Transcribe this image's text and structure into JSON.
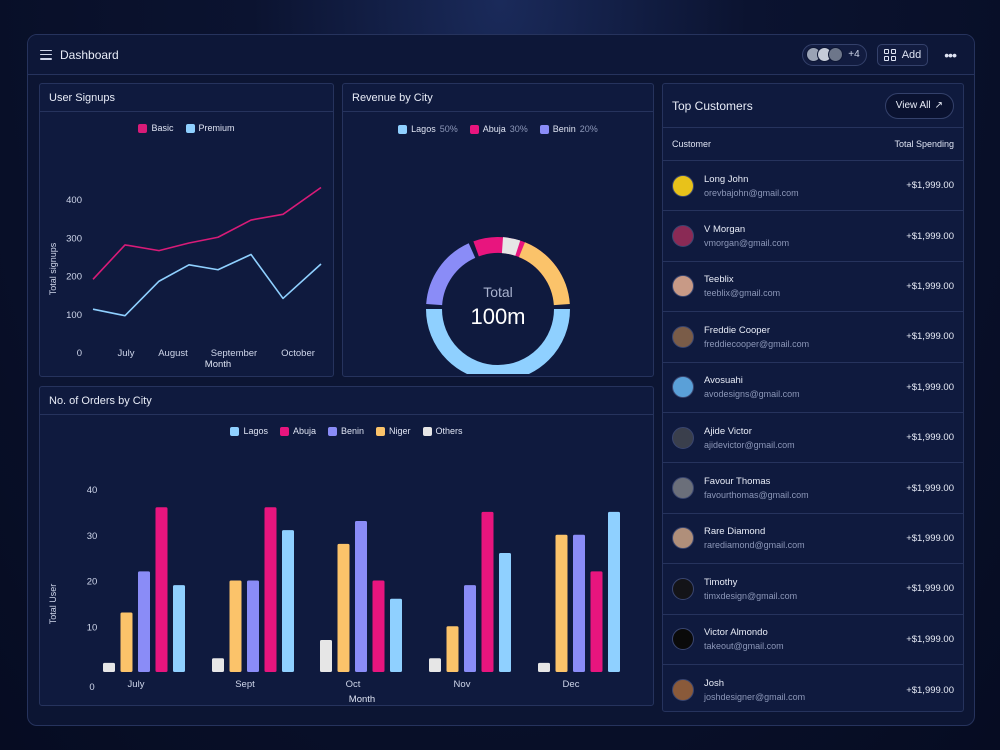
{
  "header": {
    "title": "Dashboard",
    "avatar_count": "+4",
    "add_label": "Add",
    "more_label": "•••"
  },
  "user_signups": {
    "title": "User Signups",
    "legend": [
      {
        "name": "Basic",
        "color": "#d81b78"
      },
      {
        "name": "Premium",
        "color": "#8fd0ff"
      }
    ],
    "y_ticks": [
      "400",
      "300",
      "200",
      "100",
      "0"
    ],
    "x_ticks": [
      "July",
      "August",
      "September",
      "October"
    ],
    "ylabel": "Total signups",
    "xlabel": "Month"
  },
  "revenue": {
    "title": "Revenue by City",
    "legend": [
      {
        "name": "Lagos",
        "pct": "50%",
        "color": "#8fd0ff"
      },
      {
        "name": "Abuja",
        "pct": "30%",
        "color": "#e8157e"
      },
      {
        "name": "Benin",
        "pct": "20%",
        "color": "#8a8cf7"
      }
    ],
    "center_label": "Total",
    "center_value": "100m"
  },
  "orders": {
    "title": "No. of Orders by City",
    "legend": [
      {
        "name": "Lagos",
        "color": "#8fd0ff"
      },
      {
        "name": "Abuja",
        "color": "#e8157e"
      },
      {
        "name": "Benin",
        "color": "#8a8cf7"
      },
      {
        "name": "Niger",
        "color": "#fbc36a"
      },
      {
        "name": "Others",
        "color": "#e6e6e6"
      }
    ],
    "y_ticks": [
      "40",
      "30",
      "20",
      "10",
      "0"
    ],
    "ylabel": "Total User",
    "xlabel": "Month"
  },
  "top_customers": {
    "title": "Top Customers",
    "view_all": "View All",
    "col_customer": "Customer",
    "col_spending": "Total Spending",
    "rows": [
      {
        "name": "Long John",
        "email": "orevbajohn@gmail.com",
        "amount": "+$1,999.00",
        "avatar_color": "#e8c21a"
      },
      {
        "name": "V Morgan",
        "email": "vmorgan@gmail.com",
        "amount": "+$1,999.00",
        "avatar_color": "#8a2a55"
      },
      {
        "name": "Teeblix",
        "email": "teeblix@gmail.com",
        "amount": "+$1,999.00",
        "avatar_color": "#c89a86"
      },
      {
        "name": "Freddie Cooper",
        "email": "freddiecooper@gmail.com",
        "amount": "+$1,999.00",
        "avatar_color": "#7a5c48"
      },
      {
        "name": "Avosuahi",
        "email": "avodesigns@gmail.com",
        "amount": "+$1,999.00",
        "avatar_color": "#5aa0d8"
      },
      {
        "name": "Ajide Victor",
        "email": "ajidevictor@gmail.com",
        "amount": "+$1,999.00",
        "avatar_color": "#3a3f4c"
      },
      {
        "name": "Favour Thomas",
        "email": "favourthomas@gmail.com",
        "amount": "+$1,999.00",
        "avatar_color": "#6b6f7a"
      },
      {
        "name": "Rare Diamond",
        "email": "rarediamond@gmail.com",
        "amount": "+$1,999.00",
        "avatar_color": "#b08f7a"
      },
      {
        "name": "Timothy",
        "email": "timxdesign@gmail.com",
        "amount": "+$1,999.00",
        "avatar_color": "#141418"
      },
      {
        "name": "Victor Almondo",
        "email": "takeout@gmail.com",
        "amount": "+$1,999.00",
        "avatar_color": "#0a0a0a"
      },
      {
        "name": "Josh",
        "email": "joshdesigner@gmail.com",
        "amount": "+$1,999.00",
        "avatar_color": "#8a5a3a"
      }
    ]
  },
  "chart_data": [
    {
      "type": "line",
      "title": "User Signups",
      "xlabel": "Month",
      "ylabel": "Total signups",
      "ylim": [
        0,
        450
      ],
      "x_ticks": [
        "July",
        "August",
        "September",
        "October"
      ],
      "x": [
        0,
        1,
        2,
        3,
        4,
        5,
        6,
        7,
        8
      ],
      "series": [
        {
          "name": "Basic",
          "color": "#d81b78",
          "values": [
            190,
            280,
            265,
            285,
            300,
            345,
            360,
            430,
            430
          ]
        },
        {
          "name": "Premium",
          "color": "#8fd0ff",
          "values": [
            112,
            95,
            185,
            228,
            215,
            255,
            140,
            230,
            230
          ]
        }
      ],
      "legend": "top-center",
      "grid": false
    },
    {
      "type": "pie",
      "title": "Revenue by City",
      "categories": [
        "Lagos",
        "Abuja",
        "Benin"
      ],
      "values": [
        50,
        30,
        20
      ]
    },
    {
      "type": "bar",
      "title": "No. of Orders by City",
      "xlabel": "Month",
      "ylabel": "Total User",
      "ylim": [
        0,
        45
      ],
      "categories": [
        "July",
        "Sept",
        "Oct",
        "Nov",
        "Dec"
      ],
      "series": [
        {
          "name": "Others",
          "color": "#e6e6e6",
          "values": [
            2,
            3,
            7,
            3,
            2
          ]
        },
        {
          "name": "Niger",
          "color": "#fbc36a",
          "values": [
            13,
            20,
            28,
            10,
            30
          ]
        },
        {
          "name": "Benin",
          "color": "#8a8cf7",
          "values": [
            22,
            20,
            33,
            19,
            30
          ]
        },
        {
          "name": "Abuja",
          "color": "#e8157e",
          "values": [
            36,
            36,
            20,
            35,
            22
          ]
        },
        {
          "name": "Lagos",
          "color": "#8fd0ff",
          "values": [
            19,
            31,
            16,
            26,
            35
          ]
        }
      ],
      "legend": "top-center",
      "grid": false
    }
  ]
}
